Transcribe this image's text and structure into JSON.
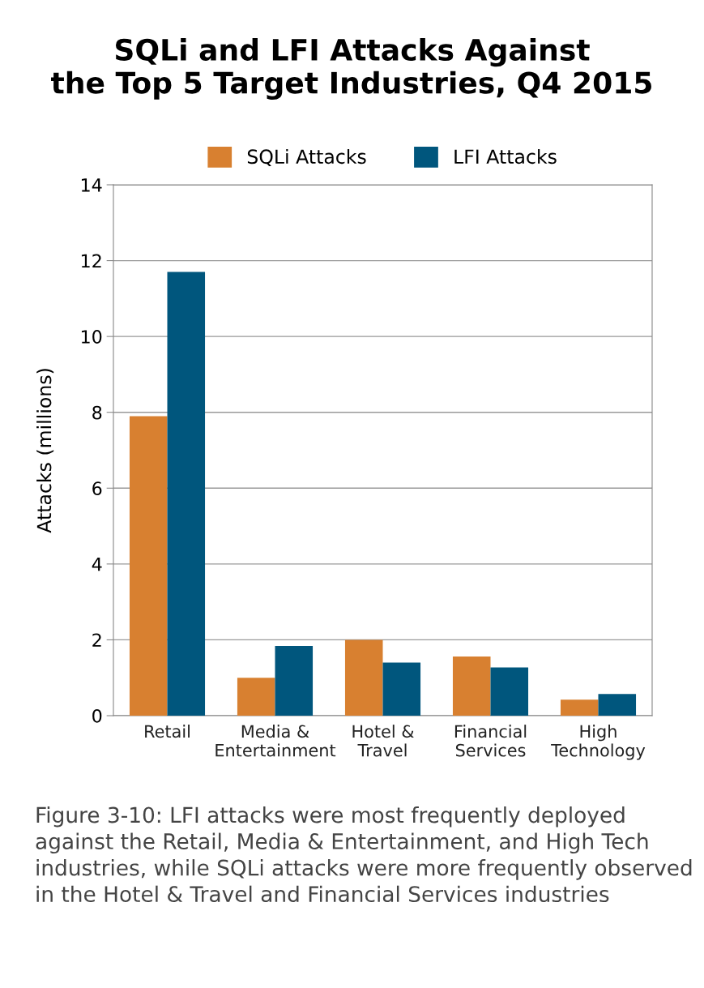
{
  "chart_data": {
    "type": "bar",
    "title": "SQLi and LFI Attacks Against\nthe Top 5 Target Industries, Q4 2015",
    "ylabel": "Attacks (millions)",
    "categories": [
      "Retail",
      "Media &\nEntertainment",
      "Hotel &\nTravel",
      "Financial\nServices",
      "High\nTechnology"
    ],
    "series": [
      {
        "name": "SQLi Attacks",
        "color": "#d88030",
        "values": [
          7.9,
          1.0,
          2.0,
          1.56,
          0.42
        ]
      },
      {
        "name": "LFI Attacks",
        "color": "#00567d",
        "values": [
          11.7,
          1.84,
          1.4,
          1.27,
          0.57
        ]
      }
    ],
    "ylim": [
      0,
      14
    ],
    "yticks": [
      0,
      2,
      4,
      6,
      8,
      10,
      12,
      14
    ],
    "grid": "y",
    "legend": "top",
    "annotations": [
      "Figure 3-10: LFI attacks were most frequently deployed against the Retail, Media & Entertainment, and High Tech industries, while SQLi attacks were more frequently observed in the Hotel & Travel and Financial Services industries"
    ]
  }
}
